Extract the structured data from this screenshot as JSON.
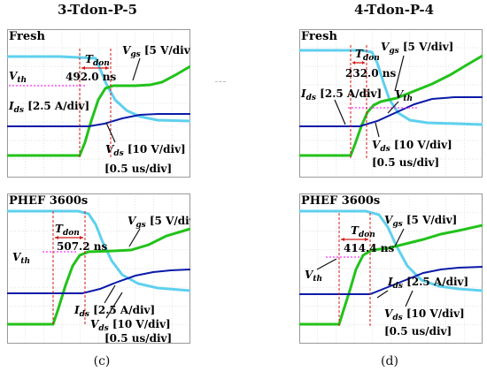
{
  "columns": [
    {
      "title": "3-Tdon-P-5",
      "label": "(c)"
    },
    {
      "title": "4-Tdon-P-4",
      "label": "(d)"
    }
  ],
  "colors": {
    "vgs": "#22c21a",
    "vds": "#5fd0ee",
    "ids": "#0a1aa8",
    "tdon_arrow": "#d21a1a",
    "vth_line": "#ff33ff",
    "grid": "#d9d9d9",
    "background": "#ffffff"
  },
  "chart_data": [
    {
      "type": "line",
      "id": "c-fresh",
      "title": "Fresh",
      "tdon_label": "T",
      "tdon_sub": "don",
      "tdon_value": "492.0 ns",
      "vgs_label": "V",
      "vgs_sub": "gs",
      "vgs_scale": " [5 V/div]",
      "vth_label": "V",
      "vth_sub": "th",
      "ids_label": "I",
      "ids_sub": "ds",
      "ids_scale": " [2.5 A/div]",
      "vds_label": "V",
      "vds_sub": "ds",
      "vds_scale": " [10 V/div]",
      "timebase": "[0.5 us/div]"
    },
    {
      "type": "line",
      "id": "d-fresh",
      "title": "Fresh",
      "tdon_label": "T",
      "tdon_sub": "don",
      "tdon_value": "232.0 ns",
      "vgs_label": "V",
      "vgs_sub": "gs",
      "vgs_scale": " [5 V/div]",
      "vth_label": "V",
      "vth_sub": "th",
      "ids_label": "I",
      "ids_sub": "ds",
      "ids_scale": " [2.5 A/div]",
      "vds_label": "V",
      "vds_sub": "ds",
      "vds_scale": " [10 V/div]",
      "timebase": "[0.5 us/div]"
    },
    {
      "type": "line",
      "id": "c-phef",
      "title": "PHEF 3600s",
      "tdon_label": "T",
      "tdon_sub": "don",
      "tdon_value": "507.2 ns",
      "vgs_label": "V",
      "vgs_sub": "gs",
      "vgs_scale": " [5 V/div]",
      "vth_label": "V",
      "vth_sub": "th",
      "ids_label": "I",
      "ids_sub": "ds",
      "ids_scale": " [2.5 A/div]",
      "vds_label": "V",
      "vds_sub": "ds",
      "vds_scale": " [10 V/div]",
      "timebase": "[0.5 us/div]"
    },
    {
      "type": "line",
      "id": "d-phef",
      "title": "PHEF 3600s",
      "tdon_label": "T",
      "tdon_sub": "don",
      "tdon_value": "414.4 ns",
      "vgs_label": "V",
      "vgs_sub": "gs",
      "vgs_scale": " [5 V/div]",
      "vth_label": "V",
      "vth_sub": "th",
      "ids_label": "I",
      "ids_sub": "ds",
      "ids_scale": " [2.5 A/div]",
      "vds_label": "V",
      "vds_sub": "ds",
      "vds_scale": " [10 V/div]",
      "timebase": "[0.5 us/div]"
    }
  ]
}
